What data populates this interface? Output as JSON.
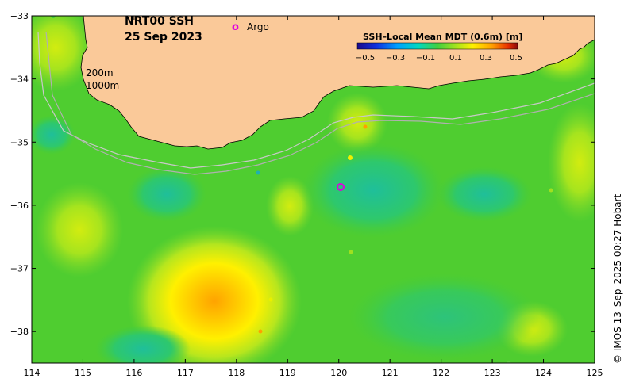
{
  "title": {
    "line1": "NRT00 SSH",
    "line2": "25 Sep 2023"
  },
  "legend": {
    "argo_marker": "o",
    "argo_label": "Argo",
    "argo_color": "#e000e0"
  },
  "isobaths": {
    "label_200": "200m",
    "label_1000": "1000m"
  },
  "colorbar": {
    "title": "SSH–Local Mean MDT (0.6m) [m]",
    "ticks": [
      "−0.5",
      "−0.3",
      "−0.1",
      "0.1",
      "0.3",
      "0.5"
    ],
    "range": [
      -0.5,
      0.5
    ]
  },
  "axes": {
    "x_ticks": [
      "114",
      "115",
      "116",
      "117",
      "118",
      "119",
      "120",
      "121",
      "122",
      "123",
      "124",
      "125"
    ],
    "y_ticks": [
      "−33",
      "−34",
      "−35",
      "−36",
      "−37",
      "−38"
    ],
    "x_range": [
      114,
      125
    ],
    "y_range": [
      -38.5,
      -33
    ]
  },
  "credit": "© IMOS 13–Sep–2025 00:27 Hobart",
  "colors": {
    "land": "#fac999",
    "ocean_base": "#55d02a",
    "low": "#1fc08a",
    "high": "#fff200",
    "peak": "#ffa800"
  }
}
